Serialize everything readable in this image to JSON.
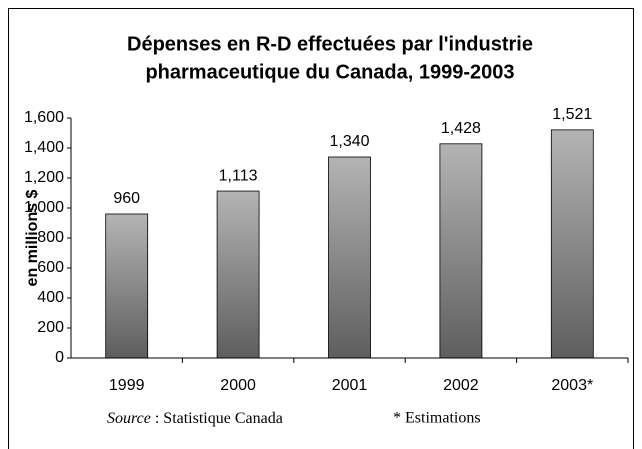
{
  "chart_data": {
    "type": "bar",
    "title": [
      "Dépenses en R-D effectuées par l'industrie",
      "pharmaceutique du Canada, 1999-2003"
    ],
    "y_label": "en millions $",
    "categories": [
      "1999",
      "2000",
      "2001",
      "2002",
      "2003*"
    ],
    "values": [
      960,
      1113,
      1340,
      1428,
      1521
    ],
    "value_labels": [
      "960",
      "1,113",
      "1,340",
      "1,428",
      "1,521"
    ],
    "color": [
      "#b4b4b4",
      "#5e5e5e"
    ],
    "ylim": [
      0,
      1600
    ],
    "yticks": [
      0,
      200,
      400,
      600,
      800,
      {
        "value": 1000,
        "label": "1,000"
      },
      {
        "value": 1200,
        "label": "1,200"
      },
      {
        "value": 1400,
        "label": "1,400"
      },
      {
        "value": 1600,
        "label": "1,600"
      }
    ],
    "grid": false,
    "source": {
      "label": "Source",
      "text": " : Statistique Canada"
    },
    "note": "* Estimations"
  }
}
